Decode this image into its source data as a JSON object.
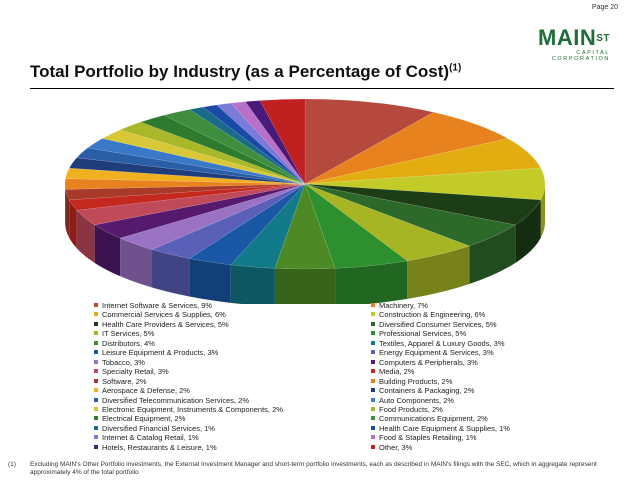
{
  "page": {
    "label": "Page 20"
  },
  "logo": {
    "main": "MAIN",
    "sup": "ST",
    "sub": "CAPITAL CORPORATION"
  },
  "title": {
    "text": "Total Portfolio by Industry (as a Percentage of Cost)",
    "footnote_mark": "(1)"
  },
  "footnote": {
    "mark": "(1)",
    "text": "Excluding MAIN's Other Portfolio investments, the External Investment Manager and short-term portfolio investments, each as described in MAIN's filings with the SEC, which in aggregate represent approximately 4% of the total portfolio"
  },
  "chart_data": {
    "type": "pie",
    "title": "Total Portfolio by Industry (as a Percentage of Cost)",
    "style": "3d",
    "slices": [
      {
        "label": "Internet Software & Services, 9%",
        "name": "Internet Software & Services",
        "value": 9,
        "color": "#b5493e"
      },
      {
        "label": "Machinery, 7%",
        "name": "Machinery",
        "value": 7,
        "color": "#e8821e"
      },
      {
        "label": "Commercial Services & Supplies, 6%",
        "name": "Commercial Services & Supplies",
        "value": 6,
        "color": "#e3ad12"
      },
      {
        "label": "Construction & Engineering, 6%",
        "name": "Construction & Engineering",
        "value": 6,
        "color": "#c2cb27"
      },
      {
        "label": "Health Care Providers & Services, 5%",
        "name": "Health Care Providers & Services",
        "value": 5,
        "color": "#1c3d16"
      },
      {
        "label": "Diversified Consumer Services, 5%",
        "name": "Diversified Consumer Services",
        "value": 5,
        "color": "#2d6a2a"
      },
      {
        "label": "IT Services, 5%",
        "name": "IT Services",
        "value": 5,
        "color": "#a5b524"
      },
      {
        "label": "Professional Services, 5%",
        "name": "Professional Services",
        "value": 5,
        "color": "#2e8f2e"
      },
      {
        "label": "Distributors, 4%",
        "name": "Distributors",
        "value": 4,
        "color": "#4d8a26"
      },
      {
        "label": "Textiles, Apparel & Luxury Goods, 3%",
        "name": "Textiles, Apparel & Luxury Goods",
        "value": 3,
        "color": "#137a8a"
      },
      {
        "label": "Leisure Equipment & Products, 3%",
        "name": "Leisure Equipment & Products",
        "value": 3,
        "color": "#1a58a6"
      },
      {
        "label": "Energy Equipment & Services, 3%",
        "name": "Energy Equipment & Services",
        "value": 3,
        "color": "#5a5fb8"
      },
      {
        "label": "Tobacco, 3%",
        "name": "Tobacco",
        "value": 3,
        "color": "#9a72c4"
      },
      {
        "label": "Computers & Peripherals, 3%",
        "name": "Computers & Peripherals",
        "value": 3,
        "color": "#551a6e"
      },
      {
        "label": "Specialty Retail, 3%",
        "name": "Specialty Retail",
        "value": 3,
        "color": "#c04a5a"
      },
      {
        "label": "Media, 2%",
        "name": "Media",
        "value": 2,
        "color": "#c4281e"
      },
      {
        "label": "Software, 2%",
        "name": "Software",
        "value": 2,
        "color": "#a83a2a"
      },
      {
        "label": "Building Products, 2%",
        "name": "Building Products",
        "value": 2,
        "color": "#e8821e"
      },
      {
        "label": "Aerospace & Defense, 2%",
        "name": "Aerospace & Defense",
        "value": 2,
        "color": "#f0b020"
      },
      {
        "label": "Containers & Packaging, 2%",
        "name": "Containers & Packaging",
        "value": 2,
        "color": "#1f3d7a"
      },
      {
        "label": "Diversified Telecommunication Services, 2%",
        "name": "Diversified Telecommunication Services",
        "value": 2,
        "color": "#2a5fa8"
      },
      {
        "label": "Auto Components, 2%",
        "name": "Auto Components",
        "value": 2,
        "color": "#3a78c8"
      },
      {
        "label": "Electronic Equipment, Instruments & Components, 2%",
        "name": "Electronic Equipment, Instruments & Components",
        "value": 2,
        "color": "#d8c838"
      },
      {
        "label": "Food Products, 2%",
        "name": "Food Products",
        "value": 2,
        "color": "#a8b828"
      },
      {
        "label": "Electrical Equipment, 2%",
        "name": "Electrical Equipment",
        "value": 2,
        "color": "#2e7a2e"
      },
      {
        "label": "Communications Equipment, 2%",
        "name": "Communications Equipment",
        "value": 2,
        "color": "#3e8e3e"
      },
      {
        "label": "Diversified Financial Services, 1%",
        "name": "Diversified Financial Services",
        "value": 1,
        "color": "#1a6a8a"
      },
      {
        "label": "Health Care Equipment & Supplies, 1%",
        "name": "Health Care Equipment & Supplies",
        "value": 1,
        "color": "#1a4aa8"
      },
      {
        "label": "Internet & Catalog Retail, 1%",
        "name": "Internet & Catalog Retail",
        "value": 1,
        "color": "#7a7ad8"
      },
      {
        "label": "Food & Staples Retailing, 1%",
        "name": "Food & Staples Retailing",
        "value": 1,
        "color": "#b870c8"
      },
      {
        "label": "Hotels, Restaurants & Leisure, 1%",
        "name": "Hotels, Restaurants & Leisure",
        "value": 1,
        "color": "#4a1a7a"
      },
      {
        "label": "Other, 3%",
        "name": "Other",
        "value": 3,
        "color": "#c02020"
      }
    ]
  }
}
